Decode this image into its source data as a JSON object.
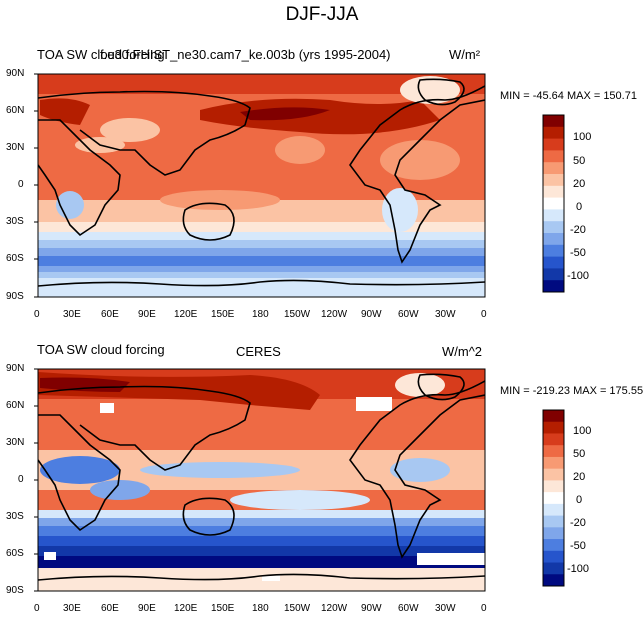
{
  "figure": {
    "title": "DJF-JJA"
  },
  "panels": [
    {
      "left_title": "TOA SW cloud forcing",
      "center_title": "f.e30.FHIST_ne30.cam7_ke.003b (yrs 1995-2004)",
      "units": "W/m²",
      "stats": "MIN = -45.64 MAX = 150.71"
    },
    {
      "left_title": "TOA SW cloud forcing",
      "center_title": "CERES",
      "units": "W/m^2",
      "stats": "MIN = -219.23 MAX = 175.55"
    }
  ],
  "axes": {
    "lat_ticks": [
      "90N",
      "60N",
      "30N",
      "0",
      "30S",
      "60S",
      "90S"
    ],
    "lon_ticks": [
      "0",
      "30E",
      "60E",
      "90E",
      "120E",
      "150E",
      "180",
      "150W",
      "120W",
      "90W",
      "60W",
      "30W",
      "0"
    ]
  },
  "colorbar": {
    "tick_labels": [
      "100",
      "50",
      "20",
      "0",
      "-20",
      "-50",
      "-100"
    ],
    "colors": [
      "#800000",
      "#b41e00",
      "#d73c1c",
      "#ee6a44",
      "#f79a73",
      "#fbc3a4",
      "#fde7d8",
      "#ffffff",
      "#d6e8fb",
      "#a8c8f2",
      "#7fa6ea",
      "#4d7ee0",
      "#2655cc",
      "#1238a8",
      "#000a80"
    ]
  }
}
